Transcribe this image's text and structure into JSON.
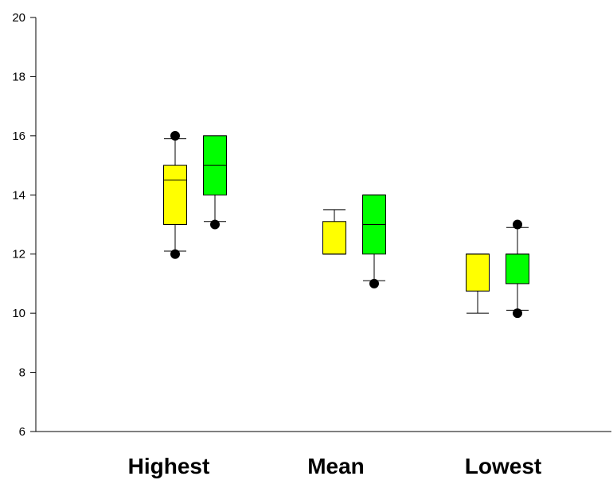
{
  "chart_data": {
    "type": "box",
    "title": "",
    "xlabel": "",
    "ylabel": "",
    "ylim": [
      6,
      20
    ],
    "yticks": [
      "6",
      "8",
      "10",
      "12",
      "14",
      "16",
      "18",
      "20"
    ],
    "categories": [
      "Highest",
      "Mean",
      "Lowest"
    ],
    "grid": false,
    "legend": "none",
    "series": [
      {
        "color": "#ffff00",
        "boxes": [
          {
            "whisker_low": 12.1,
            "q1": 13.0,
            "median": 14.5,
            "q3": 15.0,
            "whisker_high": 15.9,
            "outliers": [
              12.0,
              16.0
            ]
          },
          {
            "whisker_low": 12.0,
            "q1": 12.0,
            "median": 12.0,
            "q3": 13.1,
            "whisker_high": 13.5,
            "outliers": []
          },
          {
            "whisker_low": 10.0,
            "q1": 10.75,
            "median": 12.0,
            "q3": 12.0,
            "whisker_high": 12.0,
            "outliers": []
          }
        ]
      },
      {
        "color": "#00ff00",
        "boxes": [
          {
            "whisker_low": 13.1,
            "q1": 14.0,
            "median": 15.0,
            "q3": 16.0,
            "whisker_high": 16.0,
            "outliers": [
              13.0
            ]
          },
          {
            "whisker_low": 11.1,
            "q1": 12.0,
            "median": 13.0,
            "q3": 14.0,
            "whisker_high": 14.0,
            "outliers": [
              11.0
            ]
          },
          {
            "whisker_low": 10.1,
            "q1": 11.0,
            "median": 12.0,
            "q3": 12.0,
            "whisker_high": 12.9,
            "outliers": [
              10.0,
              13.0
            ]
          }
        ]
      }
    ]
  }
}
